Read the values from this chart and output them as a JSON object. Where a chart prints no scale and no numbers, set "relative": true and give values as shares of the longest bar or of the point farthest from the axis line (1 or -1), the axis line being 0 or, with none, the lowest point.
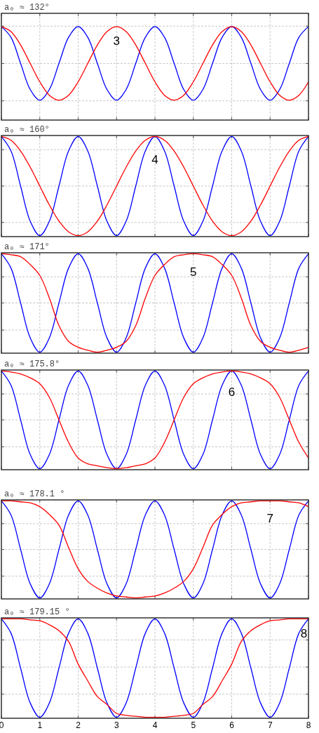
{
  "chart_data": [
    {
      "type": "line",
      "title": "a₀ ≈ 132°",
      "relative": true,
      "grid": true,
      "tick_labels": false,
      "xlim": [
        0,
        8
      ],
      "xticks": [
        0,
        1,
        2,
        3,
        4,
        5,
        6,
        7,
        8
      ],
      "x": [
        0,
        0.25,
        0.5,
        0.75,
        1,
        1.25,
        1.5,
        1.75,
        2,
        2.25,
        2.5,
        2.75,
        3,
        3.25,
        3.5,
        3.75,
        4,
        4.25,
        4.5,
        4.75,
        5,
        5.25,
        5.5,
        5.75,
        6,
        6.25,
        6.5,
        6.75,
        7,
        7.25,
        7.5,
        7.75,
        8
      ],
      "series": [
        {
          "color": "#0000ff",
          "values": [
            1,
            0.854,
            0.5,
            0.146,
            0,
            0.146,
            0.5,
            0.854,
            1,
            0.854,
            0.5,
            0.146,
            0,
            0.146,
            0.5,
            0.854,
            1,
            0.854,
            0.5,
            0.146,
            0,
            0.146,
            0.5,
            0.854,
            1,
            0.854,
            0.5,
            0.146,
            0,
            0.146,
            0.5,
            0.854,
            1
          ]
        },
        {
          "color": "#ff0000",
          "values": [
            1,
            0.933,
            0.75,
            0.5,
            0.25,
            0.067,
            0,
            0.067,
            0.25,
            0.5,
            0.75,
            0.933,
            1,
            0.933,
            0.75,
            0.5,
            0.25,
            0.067,
            0,
            0.067,
            0.25,
            0.5,
            0.75,
            0.933,
            1,
            0.933,
            0.75,
            0.5,
            0.25,
            0.067,
            0,
            0.067,
            0.25
          ]
        }
      ],
      "annotations": [
        "3"
      ]
    },
    {
      "type": "line",
      "title": "a₀ ≈ 160°",
      "relative": true,
      "grid": true,
      "tick_labels": false,
      "xlim": [
        0,
        8
      ],
      "xticks": [
        0,
        1,
        2,
        3,
        4,
        5,
        6,
        7,
        8
      ],
      "x": [
        0,
        0.25,
        0.5,
        0.75,
        1,
        1.25,
        1.5,
        1.75,
        2,
        2.25,
        2.5,
        2.75,
        3,
        3.25,
        3.5,
        3.75,
        4,
        4.25,
        4.5,
        4.75,
        5,
        5.25,
        5.5,
        5.75,
        6,
        6.25,
        6.5,
        6.75,
        7,
        7.25,
        7.5,
        7.75,
        8
      ],
      "series": [
        {
          "color": "#0000ff",
          "values": [
            1,
            0.854,
            0.5,
            0.146,
            0,
            0.146,
            0.5,
            0.854,
            1,
            0.854,
            0.5,
            0.146,
            0,
            0.146,
            0.5,
            0.854,
            1,
            0.854,
            0.5,
            0.146,
            0,
            0.146,
            0.5,
            0.854,
            1,
            0.854,
            0.5,
            0.146,
            0,
            0.146,
            0.5,
            0.854,
            1
          ]
        },
        {
          "color": "#ff0000",
          "values": [
            1,
            0.962,
            0.854,
            0.691,
            0.5,
            0.309,
            0.146,
            0.038,
            0,
            0.038,
            0.146,
            0.309,
            0.5,
            0.691,
            0.854,
            0.962,
            1,
            0.962,
            0.854,
            0.691,
            0.5,
            0.309,
            0.146,
            0.038,
            0,
            0.038,
            0.146,
            0.309,
            0.5,
            0.691,
            0.854,
            0.962,
            1
          ]
        }
      ],
      "annotations": [
        "4"
      ]
    },
    {
      "type": "line",
      "title": "a₀ ≈ 171°",
      "relative": true,
      "grid": true,
      "tick_labels": false,
      "xlim": [
        0,
        8
      ],
      "xticks": [
        0,
        1,
        2,
        3,
        4,
        5,
        6,
        7,
        8
      ],
      "x": [
        0,
        0.25,
        0.5,
        0.75,
        1,
        1.25,
        1.5,
        1.75,
        2,
        2.25,
        2.5,
        2.75,
        3,
        3.25,
        3.5,
        3.75,
        4,
        4.25,
        4.5,
        4.75,
        5,
        5.25,
        5.5,
        5.75,
        6,
        6.25,
        6.5,
        6.75,
        7,
        7.25,
        7.5,
        7.75,
        8
      ],
      "series": [
        {
          "color": "#0000ff",
          "values": [
            1,
            0.854,
            0.5,
            0.146,
            0,
            0.146,
            0.5,
            0.854,
            1,
            0.854,
            0.5,
            0.146,
            0,
            0.146,
            0.5,
            0.854,
            1,
            0.854,
            0.5,
            0.146,
            0,
            0.146,
            0.5,
            0.854,
            1,
            0.854,
            0.5,
            0.146,
            0,
            0.146,
            0.5,
            0.854,
            1
          ]
        },
        {
          "color": "#ff0000",
          "values": [
            1,
            0.99,
            0.97,
            0.89,
            0.78,
            0.55,
            0.27,
            0.11,
            0.05,
            0.02,
            0,
            0.02,
            0.05,
            0.11,
            0.27,
            0.55,
            0.78,
            0.89,
            0.97,
            0.99,
            1,
            0.99,
            0.97,
            0.89,
            0.78,
            0.55,
            0.27,
            0.11,
            0.05,
            0.02,
            0,
            0.02,
            0.05
          ]
        }
      ],
      "annotations": [
        "5"
      ]
    },
    {
      "type": "line",
      "title": "a₀ ≈ 175.8°",
      "relative": true,
      "grid": true,
      "tick_labels": false,
      "xlim": [
        0,
        8
      ],
      "xticks": [
        0,
        1,
        2,
        3,
        4,
        5,
        6,
        7,
        8
      ],
      "x": [
        0,
        0.25,
        0.5,
        0.75,
        1,
        1.25,
        1.5,
        1.75,
        2,
        2.25,
        2.5,
        2.75,
        3,
        3.25,
        3.5,
        3.75,
        4,
        4.25,
        4.5,
        4.75,
        5,
        5.25,
        5.5,
        5.75,
        6,
        6.25,
        6.5,
        6.75,
        7,
        7.25,
        7.5,
        7.75,
        8
      ],
      "series": [
        {
          "color": "#0000ff",
          "values": [
            1,
            0.854,
            0.5,
            0.146,
            0,
            0.146,
            0.5,
            0.854,
            1,
            0.854,
            0.5,
            0.146,
            0,
            0.146,
            0.5,
            0.854,
            1,
            0.854,
            0.5,
            0.146,
            0,
            0.146,
            0.5,
            0.854,
            1,
            0.854,
            0.5,
            0.146,
            0,
            0.146,
            0.5,
            0.854,
            1
          ]
        },
        {
          "color": "#ff0000",
          "values": [
            1,
            0.99,
            0.97,
            0.93,
            0.87,
            0.73,
            0.5,
            0.27,
            0.11,
            0.05,
            0.03,
            0.01,
            0,
            0.01,
            0.03,
            0.05,
            0.11,
            0.27,
            0.5,
            0.73,
            0.87,
            0.93,
            0.97,
            0.99,
            1,
            0.99,
            0.97,
            0.93,
            0.87,
            0.73,
            0.5,
            0.27,
            0.11
          ]
        }
      ],
      "annotations": [
        "6"
      ]
    },
    {
      "type": "line",
      "title": "a₀ ≈ 178.1 °",
      "relative": true,
      "grid": true,
      "tick_labels": false,
      "xlim": [
        0,
        8
      ],
      "xticks": [
        0,
        1,
        2,
        3,
        4,
        5,
        6,
        7,
        8
      ],
      "x": [
        0,
        0.25,
        0.5,
        0.75,
        1,
        1.25,
        1.5,
        1.75,
        2,
        2.25,
        2.5,
        2.75,
        3,
        3.25,
        3.5,
        3.75,
        4,
        4.25,
        4.5,
        4.75,
        5,
        5.25,
        5.5,
        5.75,
        6,
        6.25,
        6.5,
        6.75,
        7,
        7.25,
        7.5,
        7.75,
        8
      ],
      "series": [
        {
          "color": "#0000ff",
          "values": [
            1,
            0.854,
            0.5,
            0.146,
            0,
            0.146,
            0.5,
            0.854,
            1,
            0.854,
            0.5,
            0.146,
            0,
            0.146,
            0.5,
            0.854,
            1,
            0.854,
            0.5,
            0.146,
            0,
            0.146,
            0.5,
            0.854,
            1,
            0.854,
            0.5,
            0.146,
            0,
            0.146,
            0.5,
            0.854,
            1
          ]
        },
        {
          "color": "#ff0000",
          "values": [
            1,
            1,
            0.99,
            0.98,
            0.94,
            0.86,
            0.75,
            0.52,
            0.3,
            0.17,
            0.1,
            0.05,
            0.02,
            0.01,
            0,
            0.01,
            0.02,
            0.05,
            0.1,
            0.17,
            0.3,
            0.52,
            0.75,
            0.86,
            0.94,
            0.98,
            0.99,
            1,
            1,
            1,
            0.99,
            0.98,
            0.94
          ]
        }
      ],
      "annotations": [
        "7"
      ]
    },
    {
      "type": "line",
      "title": "a₀ ≈ 179.15 °",
      "relative": true,
      "grid": true,
      "xlim": [
        0,
        8
      ],
      "xticks": [
        0,
        1,
        2,
        3,
        4,
        5,
        6,
        7,
        8
      ],
      "x": [
        0,
        0.25,
        0.5,
        0.75,
        1,
        1.25,
        1.5,
        1.75,
        2,
        2.25,
        2.5,
        2.75,
        3,
        3.25,
        3.5,
        3.75,
        4,
        4.25,
        4.5,
        4.75,
        5,
        5.25,
        5.5,
        5.75,
        6,
        6.25,
        6.5,
        6.75,
        7,
        7.25,
        7.5,
        7.75,
        8
      ],
      "series": [
        {
          "color": "#0000ff",
          "values": [
            1,
            0.854,
            0.5,
            0.146,
            0,
            0.146,
            0.5,
            0.854,
            1,
            0.854,
            0.5,
            0.146,
            0,
            0.146,
            0.5,
            0.854,
            1,
            0.854,
            0.5,
            0.146,
            0,
            0.146,
            0.5,
            0.854,
            1,
            0.854,
            0.5,
            0.146,
            0,
            0.146,
            0.5,
            0.854,
            1
          ]
        },
        {
          "color": "#ff0000",
          "values": [
            1,
            1,
            1,
            0.99,
            0.98,
            0.94,
            0.88,
            0.77,
            0.54,
            0.37,
            0.21,
            0.13,
            0.04,
            0.02,
            0.01,
            0,
            0,
            0,
            0.01,
            0.02,
            0.04,
            0.13,
            0.21,
            0.37,
            0.54,
            0.77,
            0.88,
            0.94,
            0.98,
            0.99,
            1,
            1,
            1
          ]
        }
      ],
      "annotations": [
        "8"
      ]
    }
  ]
}
